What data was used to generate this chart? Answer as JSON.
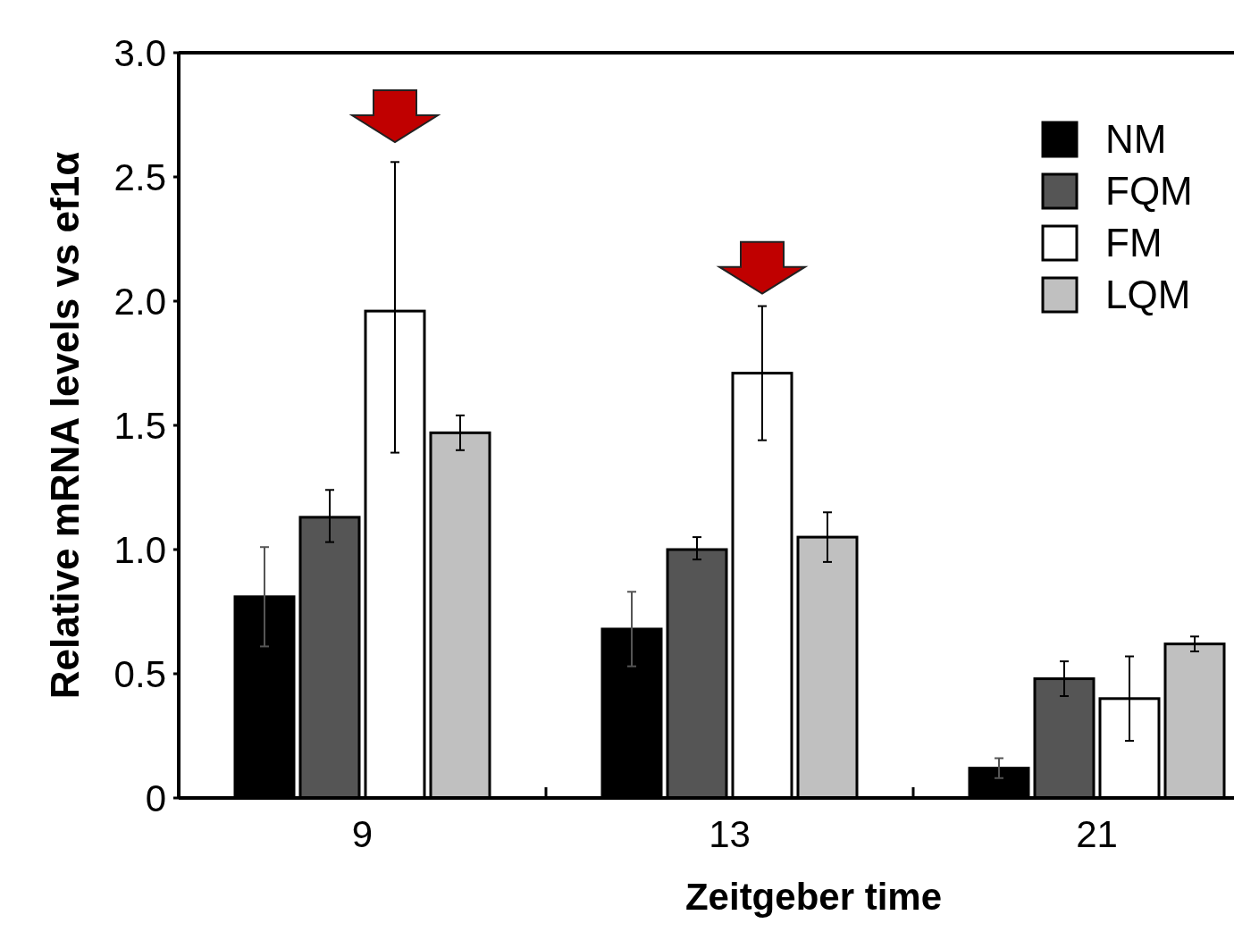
{
  "chart_data": {
    "type": "bar",
    "xlabel": "Zeitgeber time",
    "ylabel": "Relative mRNA levels vs ef1α",
    "categories": [
      "9",
      "13",
      "21"
    ],
    "series": [
      {
        "name": "NM",
        "color": "#000000",
        "values": [
          0.81,
          0.68,
          0.12
        ],
        "errors": [
          0.2,
          0.15,
          0.04
        ]
      },
      {
        "name": "FQM",
        "color": "#555555",
        "values": [
          1.13,
          1.0,
          0.48
        ],
        "errors": [
          [
            1.03,
            1.24
          ],
          [
            0.96,
            1.05
          ],
          [
            0.41,
            0.55
          ]
        ]
      },
      {
        "name": "FM",
        "color": "#ffffff",
        "values": [
          1.96,
          1.71,
          0.4
        ],
        "errors": [
          [
            1.39,
            2.56
          ],
          [
            1.44,
            1.98
          ],
          [
            0.23,
            0.57
          ]
        ]
      },
      {
        "name": "LQM",
        "color": "#c0c0c0",
        "values": [
          1.47,
          1.05,
          0.62
        ],
        "errors": [
          [
            1.4,
            1.54
          ],
          [
            0.95,
            1.15
          ],
          [
            0.59,
            0.65
          ]
        ]
      }
    ],
    "ylim": [
      0,
      3
    ],
    "yticks": [
      0,
      {
        "value": 0.5,
        "label": "0.5"
      },
      {
        "value": 1,
        "label": "1.0"
      },
      {
        "value": 1.5,
        "label": "1.5"
      },
      {
        "value": 2,
        "label": "2.0"
      },
      {
        "value": 2.5,
        "label": "2.5"
      },
      {
        "value": 3,
        "label": "3.0"
      }
    ],
    "legend": "top right",
    "grid": false
  }
}
